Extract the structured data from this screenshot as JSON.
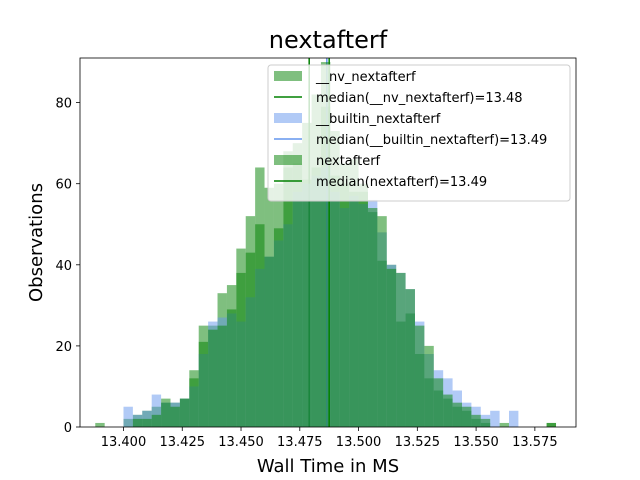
{
  "chart_data": {
    "type": "histogram",
    "title": "nextafterf",
    "xlabel": "Wall Time in MS",
    "ylabel": "Observations",
    "xlim": [
      13.3815,
      13.5925
    ],
    "ylim": [
      0,
      91
    ],
    "xticks": [
      "13.400",
      "13.425",
      "13.450",
      "13.475",
      "13.500",
      "13.525",
      "13.550",
      "13.575"
    ],
    "yticks": [
      "0",
      "20",
      "40",
      "60",
      "80"
    ],
    "grid": false,
    "legend_position": "top-right",
    "series": [
      {
        "name": "__nv_nextafterf",
        "kind": "histogram",
        "color": "#008000",
        "opacity": 0.5,
        "bins": [
          [
            13.388,
            13.392,
            1
          ],
          [
            13.4,
            13.404,
            2
          ],
          [
            13.404,
            13.408,
            3
          ],
          [
            13.408,
            13.412,
            4
          ],
          [
            13.412,
            13.416,
            5
          ],
          [
            13.416,
            13.42,
            7
          ],
          [
            13.42,
            13.424,
            6
          ],
          [
            13.424,
            13.428,
            7
          ],
          [
            13.428,
            13.432,
            12
          ],
          [
            13.432,
            13.436,
            21
          ],
          [
            13.436,
            13.44,
            25
          ],
          [
            13.44,
            13.444,
            33
          ],
          [
            13.444,
            13.448,
            35
          ],
          [
            13.448,
            13.452,
            38
          ],
          [
            13.452,
            13.456,
            52
          ],
          [
            13.456,
            13.46,
            64
          ],
          [
            13.46,
            13.464,
            59
          ],
          [
            13.464,
            13.468,
            60
          ],
          [
            13.468,
            13.472,
            68
          ],
          [
            13.472,
            13.476,
            70
          ],
          [
            13.476,
            13.48,
            75
          ],
          [
            13.48,
            13.484,
            82
          ],
          [
            13.484,
            13.488,
            79
          ],
          [
            13.488,
            13.492,
            73
          ],
          [
            13.492,
            13.496,
            65
          ],
          [
            13.496,
            13.5,
            66
          ],
          [
            13.5,
            13.504,
            60
          ],
          [
            13.504,
            13.508,
            53
          ],
          [
            13.508,
            13.512,
            41
          ],
          [
            13.512,
            13.516,
            40
          ],
          [
            13.516,
            13.52,
            26
          ],
          [
            13.52,
            13.524,
            28
          ],
          [
            13.524,
            13.528,
            18
          ],
          [
            13.528,
            13.532,
            12
          ],
          [
            13.532,
            13.536,
            9
          ],
          [
            13.536,
            13.54,
            7
          ],
          [
            13.54,
            13.544,
            5
          ],
          [
            13.544,
            13.548,
            4
          ],
          [
            13.548,
            13.552,
            2
          ],
          [
            13.552,
            13.556,
            1
          ],
          [
            13.56,
            13.564,
            1
          ],
          [
            13.58,
            13.584,
            1
          ]
        ]
      },
      {
        "name": "median(__nv_nextafterf)=13.48",
        "kind": "vline",
        "x": 13.479,
        "color": "#008000"
      },
      {
        "name": "__builtin_nextafterf",
        "kind": "histogram",
        "color": "#6495ed",
        "opacity": 0.5,
        "bins": [
          [
            13.4,
            13.404,
            5
          ],
          [
            13.404,
            13.408,
            3
          ],
          [
            13.408,
            13.412,
            4
          ],
          [
            13.412,
            13.416,
            8
          ],
          [
            13.416,
            13.42,
            6
          ],
          [
            13.42,
            13.424,
            6
          ],
          [
            13.424,
            13.428,
            7
          ],
          [
            13.428,
            13.432,
            10
          ],
          [
            13.432,
            13.436,
            18
          ],
          [
            13.436,
            13.44,
            26
          ],
          [
            13.44,
            13.444,
            27
          ],
          [
            13.444,
            13.448,
            28
          ],
          [
            13.448,
            13.452,
            26
          ],
          [
            13.452,
            13.456,
            32
          ],
          [
            13.456,
            13.46,
            39
          ],
          [
            13.46,
            13.464,
            42
          ],
          [
            13.464,
            13.468,
            46
          ],
          [
            13.468,
            13.472,
            50
          ],
          [
            13.472,
            13.476,
            58
          ],
          [
            13.476,
            13.48,
            60
          ],
          [
            13.48,
            13.484,
            62
          ],
          [
            13.484,
            13.488,
            64
          ],
          [
            13.488,
            13.492,
            58
          ],
          [
            13.492,
            13.496,
            54
          ],
          [
            13.496,
            13.5,
            57
          ],
          [
            13.5,
            13.504,
            55
          ],
          [
            13.504,
            13.508,
            56
          ],
          [
            13.508,
            13.512,
            48
          ],
          [
            13.512,
            13.516,
            40
          ],
          [
            13.516,
            13.52,
            38
          ],
          [
            13.52,
            13.524,
            34
          ],
          [
            13.524,
            13.528,
            26
          ],
          [
            13.528,
            13.532,
            18
          ],
          [
            13.532,
            13.536,
            14
          ],
          [
            13.536,
            13.54,
            12
          ],
          [
            13.54,
            13.544,
            9
          ],
          [
            13.544,
            13.548,
            6
          ],
          [
            13.548,
            13.552,
            5
          ],
          [
            13.552,
            13.556,
            3
          ],
          [
            13.556,
            13.56,
            4
          ],
          [
            13.564,
            13.568,
            4
          ]
        ]
      },
      {
        "name": "median(__builtin_nextafterf)=13.49",
        "kind": "vline",
        "x": 13.4865,
        "color": "#6495ed"
      },
      {
        "name": "nextafterf",
        "kind": "histogram",
        "color": "#008000",
        "opacity": 0.5,
        "bins": [
          [
            13.404,
            13.408,
            2
          ],
          [
            13.408,
            13.412,
            2
          ],
          [
            13.412,
            13.416,
            3
          ],
          [
            13.416,
            13.42,
            6
          ],
          [
            13.42,
            13.424,
            5
          ],
          [
            13.424,
            13.428,
            7
          ],
          [
            13.428,
            13.432,
            14
          ],
          [
            13.432,
            13.436,
            25
          ],
          [
            13.436,
            13.44,
            24
          ],
          [
            13.44,
            13.444,
            25
          ],
          [
            13.444,
            13.448,
            29
          ],
          [
            13.448,
            13.452,
            44
          ],
          [
            13.452,
            13.456,
            43
          ],
          [
            13.456,
            13.46,
            50
          ],
          [
            13.46,
            13.464,
            42
          ],
          [
            13.464,
            13.468,
            49
          ],
          [
            13.468,
            13.472,
            64
          ],
          [
            13.472,
            13.476,
            65
          ],
          [
            13.476,
            13.48,
            61
          ],
          [
            13.48,
            13.484,
            64
          ],
          [
            13.484,
            13.488,
            90
          ],
          [
            13.488,
            13.492,
            62
          ],
          [
            13.492,
            13.496,
            60
          ],
          [
            13.496,
            13.5,
            58
          ],
          [
            13.5,
            13.504,
            58
          ],
          [
            13.504,
            13.508,
            54
          ],
          [
            13.508,
            13.512,
            52
          ],
          [
            13.512,
            13.516,
            39
          ],
          [
            13.516,
            13.52,
            38
          ],
          [
            13.52,
            13.524,
            34
          ],
          [
            13.524,
            13.528,
            25
          ],
          [
            13.528,
            13.532,
            20
          ],
          [
            13.532,
            13.536,
            12
          ],
          [
            13.536,
            13.54,
            8
          ],
          [
            13.54,
            13.544,
            6
          ],
          [
            13.544,
            13.548,
            5
          ],
          [
            13.548,
            13.552,
            3
          ],
          [
            13.552,
            13.556,
            2
          ],
          [
            13.58,
            13.584,
            1
          ]
        ]
      },
      {
        "name": "median(nextafterf)=13.49",
        "kind": "vline",
        "x": 13.4875,
        "color": "#008000"
      }
    ]
  }
}
